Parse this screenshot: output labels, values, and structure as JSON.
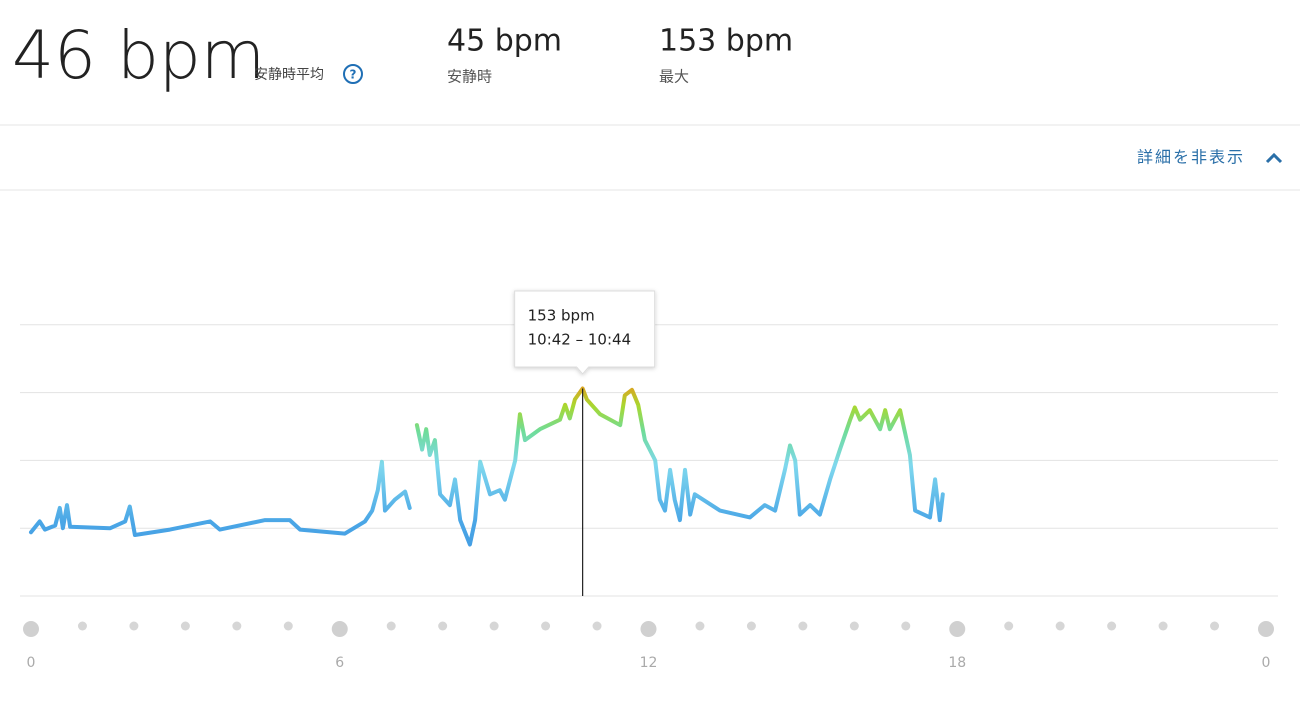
{
  "header": {
    "average": "46 bpm",
    "average_label": "安静時平均",
    "help_icon": "?",
    "resting": "45 bpm",
    "resting_label": "安静時",
    "max": "153 bpm",
    "max_label": "最大"
  },
  "toggle": "詳細を非表示",
  "chart_data": {
    "type": "line",
    "x": [
      0.0,
      0.17,
      0.27,
      0.47,
      0.56,
      0.62,
      0.7,
      0.76,
      1.54,
      1.83,
      1.92,
      2.02,
      2.7,
      3.48,
      3.67,
      4.55,
      5.03,
      5.23,
      6.1,
      6.49,
      6.63,
      6.74,
      6.82,
      6.88,
      7.07,
      7.27,
      7.36,
      7.45,
      7.5,
      7.6,
      7.68,
      7.75,
      7.85,
      7.95,
      8.14,
      8.24,
      8.34,
      8.53,
      8.63,
      8.73,
      8.92,
      9.11,
      9.21,
      9.41,
      9.5,
      9.6,
      9.89,
      10.28,
      10.38,
      10.47,
      10.57,
      10.72,
      10.8,
      11.06,
      11.45,
      11.54,
      11.68,
      11.8,
      11.93,
      12.13,
      12.22,
      12.32,
      12.42,
      12.51,
      12.61,
      12.71,
      12.81,
      12.9,
      13.39,
      13.97,
      14.26,
      14.46,
      14.65,
      14.75,
      14.85,
      14.94,
      15.14,
      15.33,
      15.53,
      15.72,
      15.92,
      16.01,
      16.11,
      16.3,
      16.5,
      16.6,
      16.69,
      16.89,
      17.08,
      17.18,
      17.47,
      17.57,
      17.66,
      17.72
    ],
    "values": [
      47,
      55,
      49,
      52,
      65,
      50,
      67,
      51,
      50,
      55,
      66,
      45,
      49,
      55,
      49,
      56,
      56,
      49,
      46,
      55,
      63,
      78,
      99,
      63,
      71,
      77,
      65,
      null,
      126,
      108,
      123,
      104,
      115,
      75,
      67,
      86,
      56,
      38,
      56,
      99,
      75,
      78,
      71,
      100,
      134,
      115,
      123,
      130,
      141,
      131,
      145,
      153,
      145,
      134,
      126,
      148,
      152,
      141,
      115,
      100,
      71,
      63,
      93,
      71,
      56,
      93,
      60,
      75,
      63,
      58,
      67,
      63,
      93,
      111,
      100,
      60,
      67,
      60,
      86,
      108,
      130,
      139,
      130,
      137,
      123,
      137,
      123,
      137,
      104,
      63,
      58,
      86,
      56,
      75
    ],
    "xlim": [
      0,
      24
    ],
    "xticks": [
      0,
      6,
      12,
      18,
      {
        "value": 24,
        "label": "0"
      }
    ],
    "ylim": [
      0,
      250
    ],
    "yticks": [
      0,
      50,
      100,
      150,
      200
    ],
    "grid": true,
    "tooltip": {
      "title": "153 bpm",
      "range": "10:42 – 10:44"
    }
  }
}
